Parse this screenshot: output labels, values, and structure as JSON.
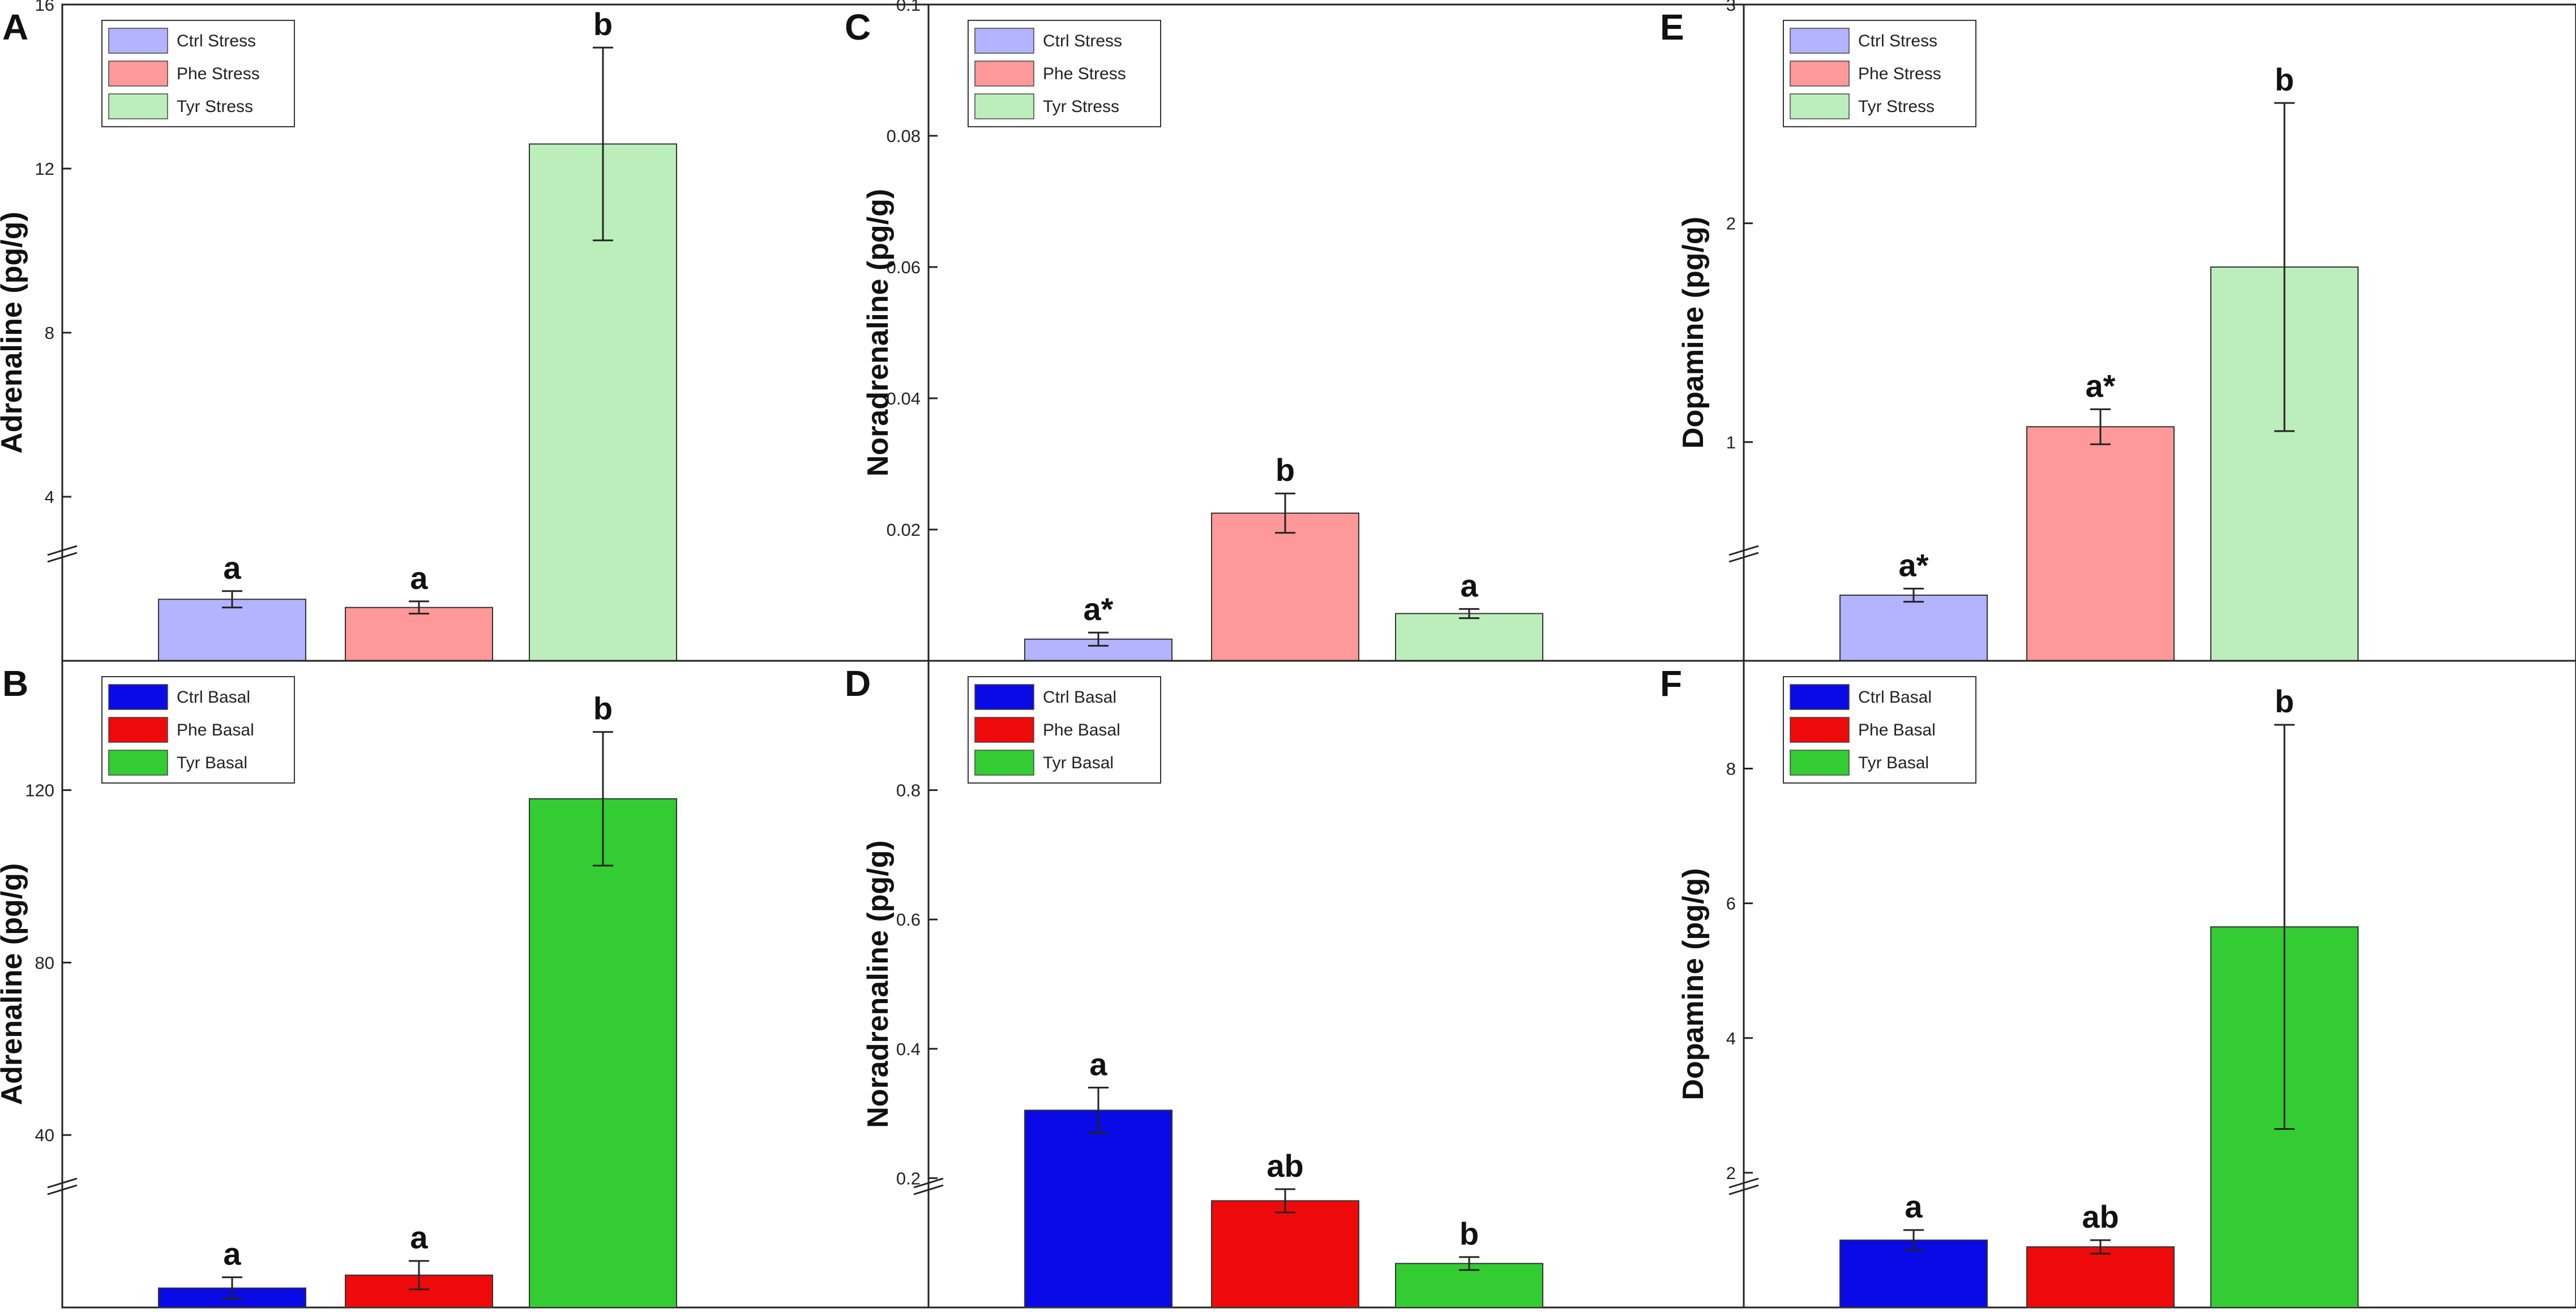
{
  "figure": {
    "panels": [
      {
        "label": "A",
        "row": 0,
        "col": 0
      },
      {
        "label": "B",
        "row": 1,
        "col": 0
      },
      {
        "label": "C",
        "row": 0,
        "col": 1
      },
      {
        "label": "D",
        "row": 1,
        "col": 1
      },
      {
        "label": "E",
        "row": 0,
        "col": 2
      },
      {
        "label": "F",
        "row": 1,
        "col": 2
      }
    ]
  },
  "chart_data": [
    {
      "panel": "A",
      "type": "bar",
      "ylabel": "Adrenaline (pg/g)",
      "ylim": [
        0,
        16
      ],
      "axis_break": true,
      "yticks": [
        4,
        8,
        12,
        16
      ],
      "ytick_labels": [
        "4",
        "8",
        "12",
        "16"
      ],
      "categories": [
        "Ctrl Stress",
        "Phe Stress",
        "Tyr Stress"
      ],
      "values": [
        1.5,
        1.3,
        12.6
      ],
      "errors": [
        0.2,
        0.15,
        2.35
      ],
      "significance": [
        "a",
        "a",
        "b"
      ],
      "colors": [
        "#b3b3ff",
        "#ff9999",
        "#bbeebb"
      ],
      "legend": [
        "Ctrl Stress",
        "Phe Stress",
        "Tyr Stress"
      ]
    },
    {
      "panel": "B",
      "type": "bar",
      "ylabel": "Adrenaline (pg/g)",
      "ylim": [
        0,
        150
      ],
      "axis_break": true,
      "yticks": [
        40,
        80,
        120
      ],
      "ytick_labels": [
        "40",
        "80",
        "120"
      ],
      "categories": [
        "Ctrl Basal",
        "Phe Basal",
        "Tyr Basal"
      ],
      "values": [
        4.5,
        7.5,
        118
      ],
      "errors": [
        2.5,
        3.3,
        15.5
      ],
      "significance": [
        "a",
        "a",
        "b"
      ],
      "colors": [
        "#0a0ae6",
        "#ee0a0a",
        "#33cc33"
      ],
      "legend": [
        "Ctrl Basal",
        "Phe Basal",
        "Tyr Basal"
      ]
    },
    {
      "panel": "C",
      "type": "bar",
      "ylabel": "Noradrenaline (pg/g)",
      "ylim": [
        0,
        0.1
      ],
      "axis_break": false,
      "yticks": [
        0.02,
        0.04,
        0.06,
        0.08,
        0.1
      ],
      "ytick_labels": [
        "0.02",
        "0.04",
        "0.06",
        "0.08",
        "0.1"
      ],
      "categories": [
        "Ctrl Stress",
        "Phe Stress",
        "Tyr Stress"
      ],
      "values": [
        0.0033,
        0.0225,
        0.0072
      ],
      "errors": [
        0.001,
        0.003,
        0.0007
      ],
      "significance": [
        "a*",
        "b",
        "a"
      ],
      "colors": [
        "#b3b3ff",
        "#ff9999",
        "#bbeebb"
      ],
      "legend": [
        "Ctrl Stress",
        "Phe Stress",
        "Tyr Stress"
      ]
    },
    {
      "panel": "D",
      "type": "bar",
      "ylabel": "Noradrenaline (pg/g)",
      "ylim": [
        0,
        1.0
      ],
      "axis_break": true,
      "yticks": [
        0.2,
        0.4,
        0.6,
        0.8
      ],
      "ytick_labels": [
        "0.2",
        "0.4",
        "0.6",
        "0.8"
      ],
      "categories": [
        "Ctrl Basal",
        "Phe Basal",
        "Tyr Basal"
      ],
      "values": [
        0.305,
        0.165,
        0.068
      ],
      "errors": [
        0.035,
        0.018,
        0.01
      ],
      "significance": [
        "a",
        "ab",
        "b"
      ],
      "colors": [
        "#0a0ae6",
        "#ee0a0a",
        "#33cc33"
      ],
      "legend": [
        "Ctrl Basal",
        "Phe Basal",
        "Tyr Basal"
      ]
    },
    {
      "panel": "E",
      "type": "bar",
      "ylabel": "Dopamine (pg/g)",
      "ylim": [
        0,
        3
      ],
      "axis_break": true,
      "yticks": [
        1,
        2,
        3
      ],
      "ytick_labels": [
        "1",
        "2",
        "3"
      ],
      "categories": [
        "Ctrl Stress",
        "Phe Stress",
        "Tyr Stress"
      ],
      "values": [
        0.3,
        1.07,
        1.8
      ],
      "errors": [
        0.03,
        0.08,
        0.75
      ],
      "significance": [
        "a*",
        "a*",
        "b"
      ],
      "colors": [
        "#b3b3ff",
        "#ff9999",
        "#bbeebb"
      ],
      "legend": [
        "Ctrl Stress",
        "Phe Stress",
        "Tyr Stress"
      ]
    },
    {
      "panel": "F",
      "type": "bar",
      "ylabel": "Dopamine (pg/g)",
      "ylim": [
        0,
        9.6
      ],
      "axis_break": true,
      "yticks": [
        2,
        4,
        6,
        8
      ],
      "ytick_labels": [
        "2",
        "4",
        "6",
        "8"
      ],
      "categories": [
        "Ctrl Basal",
        "Phe Basal",
        "Tyr Basal"
      ],
      "values": [
        1.0,
        0.9,
        5.65
      ],
      "errors": [
        0.15,
        0.1,
        3.0
      ],
      "significance": [
        "a",
        "ab",
        "b"
      ],
      "colors": [
        "#0a0ae6",
        "#ee0a0a",
        "#33cc33"
      ],
      "legend": [
        "Ctrl Basal",
        "Phe Basal",
        "Tyr Basal"
      ]
    }
  ]
}
